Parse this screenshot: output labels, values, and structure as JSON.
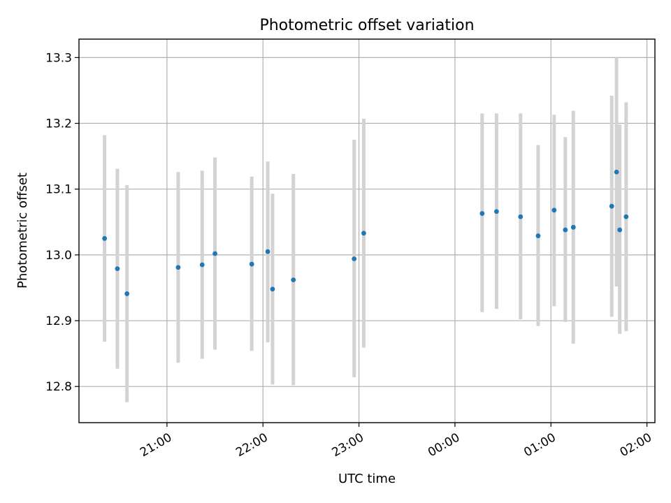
{
  "chart_data": {
    "type": "scatter",
    "title": "Photometric offset variation",
    "xlabel": "UTC time",
    "ylabel": "Photometric offset",
    "grid": true,
    "x_unit": "UTC time (hh:mm)",
    "xlim": [
      "20:05",
      "26:05"
    ],
    "ylim": [
      12.745,
      13.328
    ],
    "x_ticks": [
      "21:00",
      "22:00",
      "23:00",
      "00:00",
      "01:00",
      "02:00"
    ],
    "y_ticks": [
      "12.8",
      "12.9",
      "13.0",
      "13.1",
      "13.2",
      "13.3"
    ],
    "colors": {
      "points": "#1f77b4",
      "errorbars": "#d3d3d3"
    },
    "series": [
      {
        "points": [
          {
            "x": "20:21",
            "y": 13.025,
            "err_low": 12.868,
            "err_high": 13.182
          },
          {
            "x": "20:29",
            "y": 12.979,
            "err_low": 12.827,
            "err_high": 13.131
          },
          {
            "x": "20:35",
            "y": 12.941,
            "err_low": 12.776,
            "err_high": 13.106
          },
          {
            "x": "21:07",
            "y": 12.981,
            "err_low": 12.836,
            "err_high": 13.126
          },
          {
            "x": "21:22",
            "y": 12.985,
            "err_low": 12.842,
            "err_high": 13.128
          },
          {
            "x": "21:30",
            "y": 13.002,
            "err_low": 12.856,
            "err_high": 13.148
          },
          {
            "x": "21:53",
            "y": 12.986,
            "err_low": 12.854,
            "err_high": 13.119
          },
          {
            "x": "22:03",
            "y": 13.005,
            "err_low": 12.867,
            "err_high": 13.142
          },
          {
            "x": "22:06",
            "y": 12.948,
            "err_low": 12.803,
            "err_high": 13.093
          },
          {
            "x": "22:19",
            "y": 12.962,
            "err_low": 12.802,
            "err_high": 13.123
          },
          {
            "x": "22:57",
            "y": 12.994,
            "err_low": 12.814,
            "err_high": 13.175
          },
          {
            "x": "23:03",
            "y": 13.033,
            "err_low": 12.859,
            "err_high": 13.207
          },
          {
            "x": "00:17",
            "y": 13.063,
            "err_low": 12.913,
            "err_high": 13.215
          },
          {
            "x": "00:26",
            "y": 13.066,
            "err_low": 12.918,
            "err_high": 13.215
          },
          {
            "x": "00:41",
            "y": 13.058,
            "err_low": 12.902,
            "err_high": 13.215
          },
          {
            "x": "00:52",
            "y": 13.029,
            "err_low": 12.892,
            "err_high": 13.167
          },
          {
            "x": "01:02",
            "y": 13.068,
            "err_low": 12.922,
            "err_high": 13.213
          },
          {
            "x": "01:09",
            "y": 13.038,
            "err_low": 12.898,
            "err_high": 13.179
          },
          {
            "x": "01:14",
            "y": 13.042,
            "err_low": 12.865,
            "err_high": 13.219
          },
          {
            "x": "01:38",
            "y": 13.074,
            "err_low": 12.906,
            "err_high": 13.242
          },
          {
            "x": "01:41",
            "y": 13.126,
            "err_low": 12.952,
            "err_high": 13.3
          },
          {
            "x": "01:43",
            "y": 13.038,
            "err_low": 12.88,
            "err_high": 13.198
          },
          {
            "x": "01:47",
            "y": 13.058,
            "err_low": 12.884,
            "err_high": 13.232
          }
        ]
      }
    ]
  }
}
